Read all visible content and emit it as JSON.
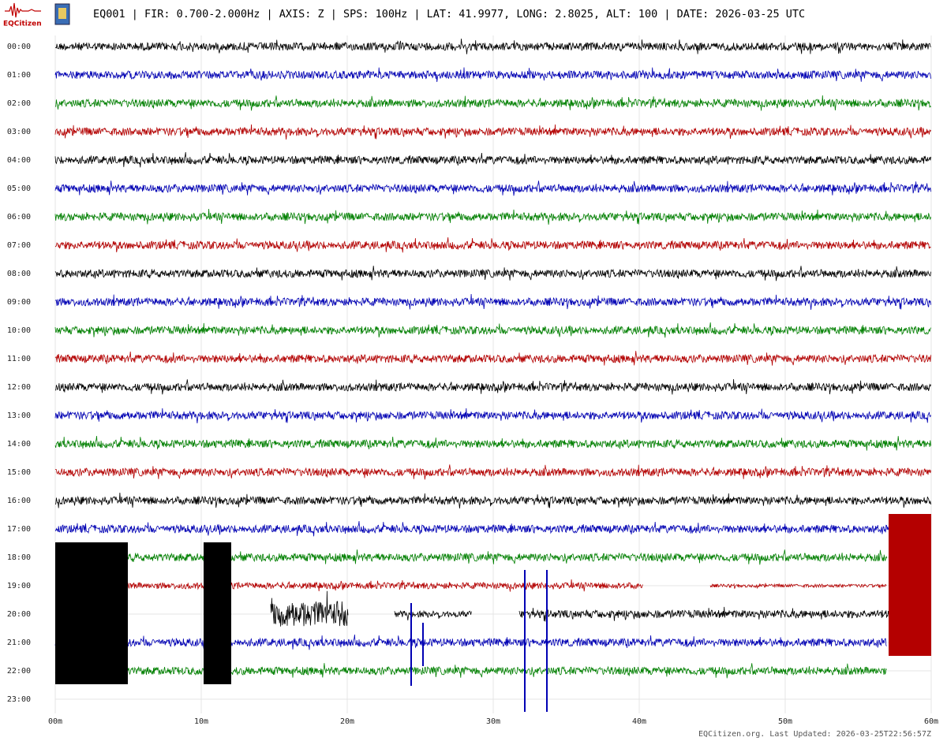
{
  "header": {
    "logo": "EQCitizen",
    "title": "EQ001 | FIR: 0.700-2.000Hz | AXIS: Z | SPS: 100Hz | LAT: 41.9977, LONG: 2.8025, ALT: 100 | DATE: 2026-03-25 UTC"
  },
  "chart_data": {
    "type": "helicorder",
    "rows": [
      "00:00",
      "01:00",
      "02:00",
      "03:00",
      "04:00",
      "05:00",
      "06:00",
      "07:00",
      "08:00",
      "09:00",
      "10:00",
      "11:00",
      "12:00",
      "13:00",
      "14:00",
      "15:00",
      "16:00",
      "17:00",
      "18:00",
      "19:00",
      "20:00",
      "21:00",
      "22:00",
      "23:00"
    ],
    "xlim": [
      0,
      60
    ],
    "xticks": [
      {
        "value": 0,
        "label": "00m"
      },
      {
        "value": 10,
        "label": "10m"
      },
      {
        "value": 20,
        "label": "20m"
      },
      {
        "value": 30,
        "label": "30m"
      },
      {
        "value": 40,
        "label": "40m"
      },
      {
        "value": 50,
        "label": "50m"
      },
      {
        "value": 60,
        "label": "60m"
      }
    ],
    "colors": [
      "#000000",
      "#0000b4",
      "#008000",
      "#b40000"
    ],
    "grid": true
  },
  "footer": "EQCitizen.org. Last Updated: 2026-03-25T22:56:57Z"
}
